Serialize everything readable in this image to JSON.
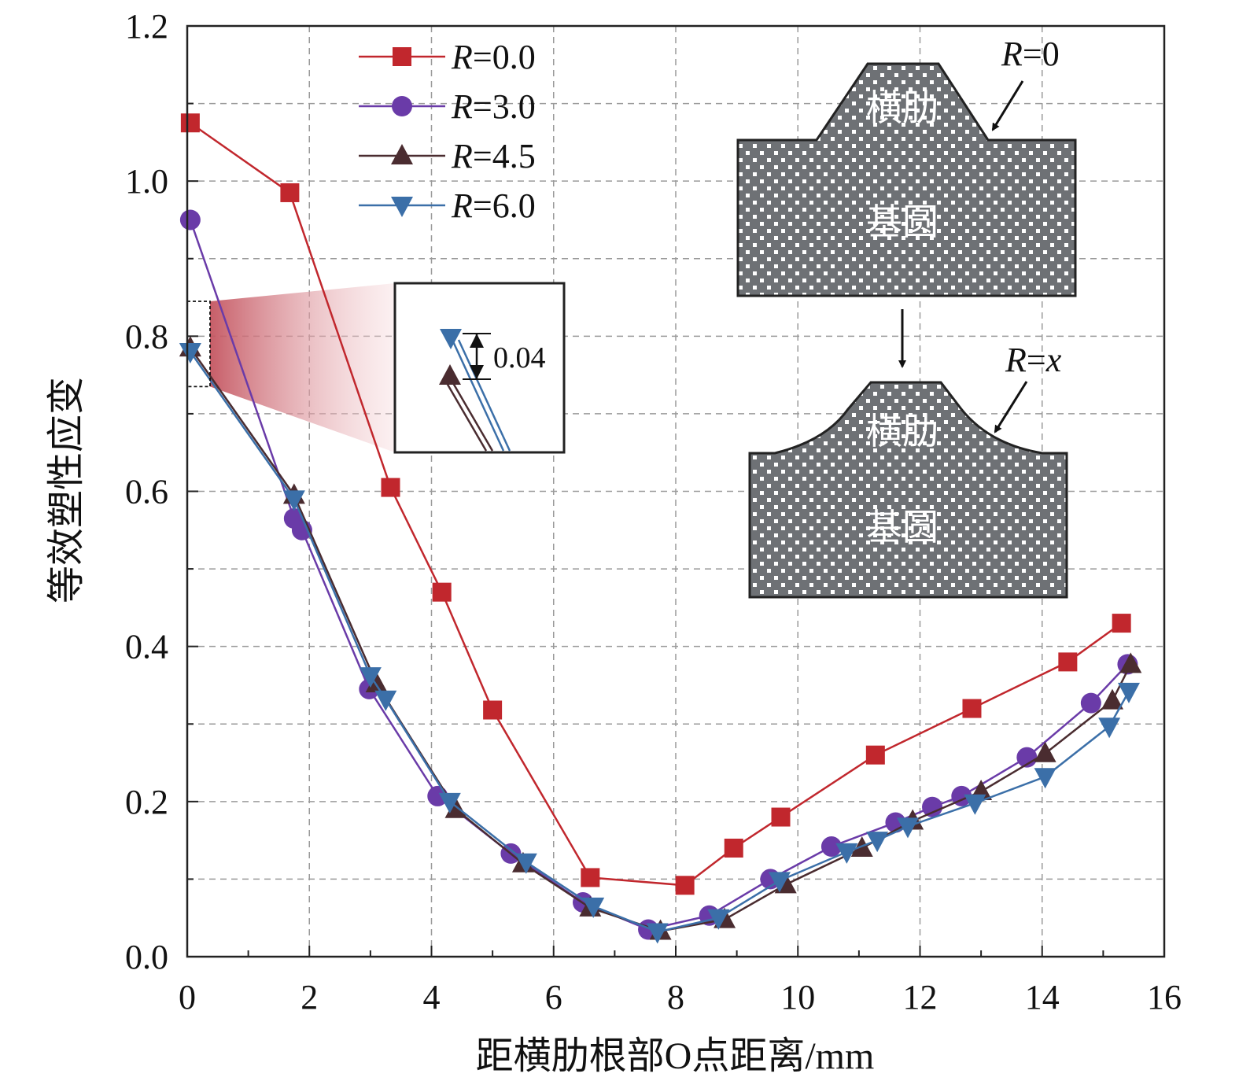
{
  "chart_data": {
    "type": "line",
    "xlabel": "距横肋根部O点距离/mm",
    "ylabel": "等效塑性应变",
    "xlim": [
      0,
      16
    ],
    "ylim": [
      0,
      1.2
    ],
    "x_ticks": [
      "0",
      "2",
      "4",
      "6",
      "8",
      "10",
      "12",
      "14",
      "16"
    ],
    "y_ticks": [
      "0.0",
      "0.2",
      "0.4",
      "0.6",
      "0.8",
      "1.0",
      "1.2"
    ],
    "grid": true,
    "legend_position": "top-left",
    "series": [
      {
        "name": "R=0.0",
        "label_var": "R",
        "label_val": "=0.0",
        "color": "#c1272d",
        "marker": "square",
        "points": [
          [
            0.05,
            1.075
          ],
          [
            1.68,
            0.985
          ],
          [
            3.33,
            0.605
          ],
          [
            4.17,
            0.47
          ],
          [
            5.0,
            0.318
          ],
          [
            6.6,
            0.102
          ],
          [
            8.15,
            0.092
          ],
          [
            8.95,
            0.14
          ],
          [
            9.72,
            0.18
          ],
          [
            11.27,
            0.26
          ],
          [
            12.85,
            0.32
          ],
          [
            14.42,
            0.38
          ],
          [
            15.3,
            0.43
          ]
        ]
      },
      {
        "name": "R=3.0",
        "label_var": "R",
        "label_val": "=3.0",
        "color": "#6a3ba8",
        "marker": "circle",
        "points": [
          [
            0.05,
            0.95
          ],
          [
            1.75,
            0.565
          ],
          [
            1.88,
            0.55
          ],
          [
            2.98,
            0.345
          ],
          [
            4.1,
            0.207
          ],
          [
            5.3,
            0.133
          ],
          [
            6.48,
            0.07
          ],
          [
            7.55,
            0.035
          ],
          [
            8.55,
            0.053
          ],
          [
            9.55,
            0.1
          ],
          [
            10.55,
            0.142
          ],
          [
            11.6,
            0.173
          ],
          [
            12.2,
            0.193
          ],
          [
            12.68,
            0.207
          ],
          [
            13.75,
            0.257
          ],
          [
            14.8,
            0.327
          ],
          [
            15.4,
            0.377
          ]
        ]
      },
      {
        "name": "R=4.5",
        "label_var": "R",
        "label_val": "=4.5",
        "color": "#4a2c30",
        "marker": "triangle-up",
        "points": [
          [
            0.05,
            0.785
          ],
          [
            1.75,
            0.595
          ],
          [
            3.1,
            0.352
          ],
          [
            4.4,
            0.19
          ],
          [
            5.5,
            0.12
          ],
          [
            6.6,
            0.063
          ],
          [
            7.75,
            0.033
          ],
          [
            8.8,
            0.048
          ],
          [
            9.8,
            0.093
          ],
          [
            11.05,
            0.14
          ],
          [
            11.88,
            0.175
          ],
          [
            13.0,
            0.213
          ],
          [
            14.05,
            0.262
          ],
          [
            15.15,
            0.33
          ],
          [
            15.45,
            0.377
          ]
        ]
      },
      {
        "name": "R=6.0",
        "label_var": "R",
        "label_val": "=6.0",
        "color": "#3b6fa8",
        "marker": "triangle-down",
        "points": [
          [
            0.05,
            0.78
          ],
          [
            1.75,
            0.59
          ],
          [
            3.0,
            0.362
          ],
          [
            3.25,
            0.332
          ],
          [
            4.3,
            0.2
          ],
          [
            5.55,
            0.122
          ],
          [
            6.65,
            0.065
          ],
          [
            7.7,
            0.032
          ],
          [
            8.7,
            0.05
          ],
          [
            9.7,
            0.098
          ],
          [
            10.8,
            0.135
          ],
          [
            11.3,
            0.15
          ],
          [
            11.8,
            0.168
          ],
          [
            12.9,
            0.198
          ],
          [
            14.05,
            0.232
          ],
          [
            15.1,
            0.297
          ],
          [
            15.42,
            0.342
          ]
        ]
      }
    ],
    "annotations": {
      "zoom_value": "0.04",
      "shape_top_label": "R=0",
      "shape_bottom_label": "R=x",
      "rib_text": "横肋",
      "base_text": "基圆"
    }
  }
}
